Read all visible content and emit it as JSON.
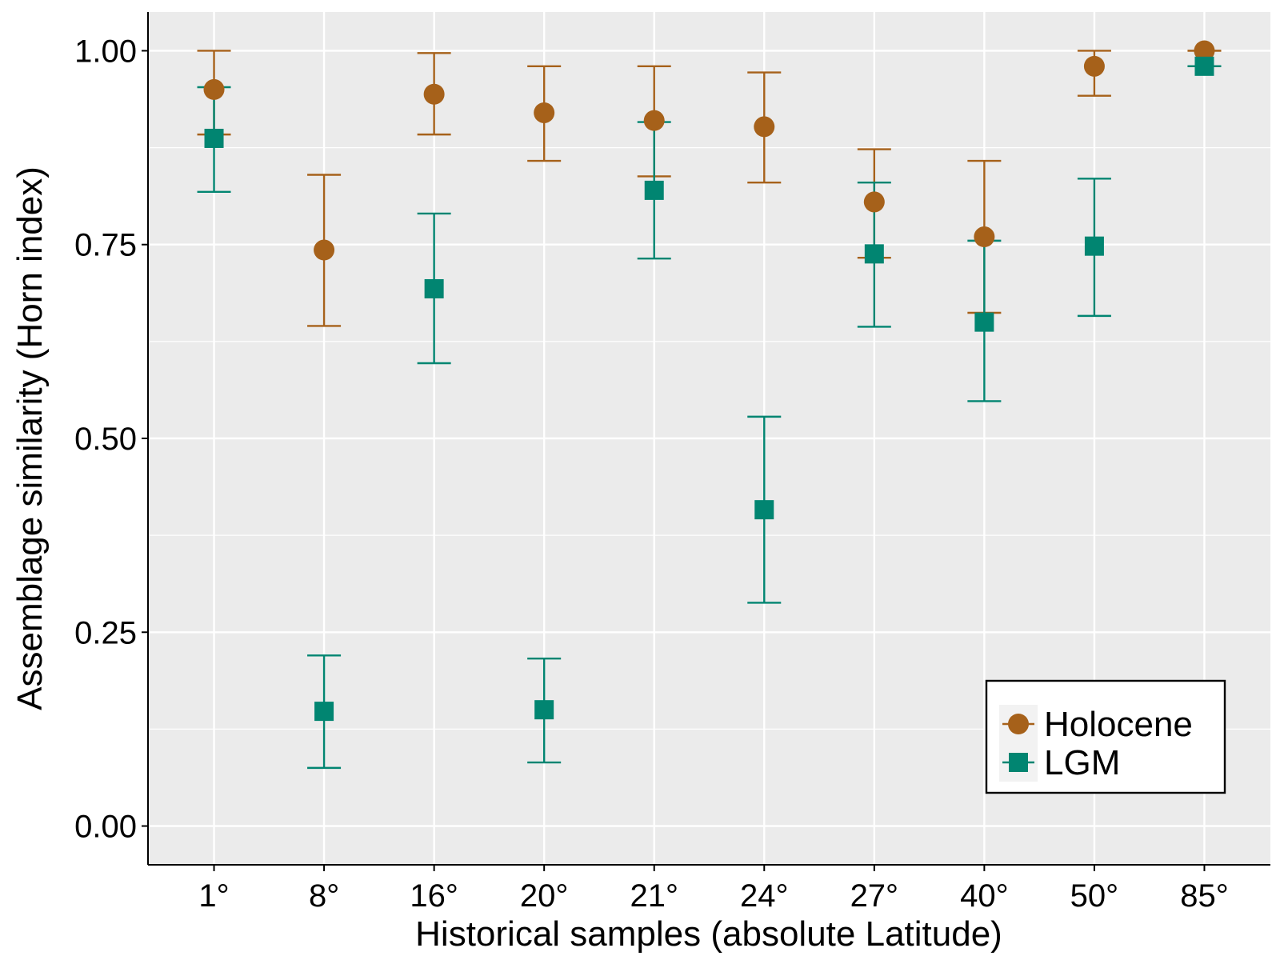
{
  "chart_data": {
    "type": "scatter",
    "title": "",
    "xlabel": "Historical samples (absolute Latitude)",
    "ylabel": "Assemblage similarity (Horn index)",
    "categories": [
      "1°",
      "8°",
      "16°",
      "20°",
      "21°",
      "24°",
      "27°",
      "40°",
      "50°",
      "85°"
    ],
    "ylim": [
      -0.05,
      1.05
    ],
    "yticks": [
      0.0,
      0.25,
      0.5,
      0.75,
      1.0
    ],
    "ytick_labels": [
      "0.00",
      "0.25",
      "0.50",
      "0.75",
      "1.00"
    ],
    "grid": true,
    "legend_position": "bottom-right",
    "series": [
      {
        "name": "Holocene",
        "marker": "circle",
        "color": "#A6611A",
        "values": [
          0.95,
          0.743,
          0.944,
          0.92,
          0.91,
          0.902,
          0.805,
          0.76,
          0.98,
          1.0
        ],
        "lower": [
          0.892,
          0.645,
          0.892,
          0.858,
          0.838,
          0.83,
          0.733,
          0.662,
          0.942,
          1.0
        ],
        "upper": [
          1.0,
          0.84,
          0.997,
          0.98,
          0.98,
          0.972,
          0.873,
          0.858,
          1.0,
          1.0
        ]
      },
      {
        "name": "LGM",
        "marker": "square",
        "color": "#018571",
        "values": [
          0.887,
          0.148,
          0.693,
          0.15,
          0.82,
          0.408,
          0.738,
          0.65,
          0.748,
          0.98
        ],
        "lower": [
          0.818,
          0.075,
          0.597,
          0.082,
          0.732,
          0.288,
          0.644,
          0.548,
          0.658,
          0.98
        ],
        "upper": [
          0.953,
          0.22,
          0.79,
          0.216,
          0.908,
          0.528,
          0.83,
          0.755,
          0.835,
          0.98
        ]
      }
    ]
  }
}
